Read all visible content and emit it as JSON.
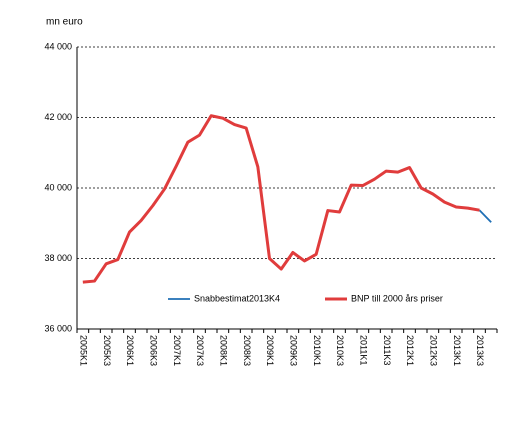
{
  "chart_data": {
    "type": "line",
    "y_label": "mn euro",
    "categories": [
      "2005K1",
      null,
      "2005K3",
      null,
      "2006K1",
      null,
      "2006K3",
      null,
      "2007K1",
      null,
      "2007K3",
      null,
      "2008K1",
      null,
      "2008K3",
      null,
      "2009K1",
      null,
      "2009K3",
      null,
      "2010K1",
      null,
      "2010K3",
      null,
      "2011K1",
      null,
      "2011K3",
      null,
      "2012K1",
      null,
      "2012K3",
      null,
      "2013K1",
      null,
      "2013K3",
      null
    ],
    "series": [
      {
        "name": "Snabbestimat2013K4",
        "color": "#1f6fb5",
        "values": [
          null,
          null,
          null,
          null,
          null,
          null,
          null,
          null,
          null,
          null,
          null,
          null,
          null,
          null,
          null,
          null,
          null,
          null,
          null,
          null,
          null,
          null,
          null,
          null,
          null,
          null,
          null,
          null,
          null,
          null,
          null,
          null,
          null,
          null,
          39370,
          39030
        ]
      },
      {
        "name": "BNP till 2000 års priser",
        "color": "#e03c3c",
        "values": [
          37330,
          37360,
          37850,
          37970,
          38750,
          39080,
          39500,
          39970,
          40620,
          41300,
          41500,
          42050,
          41980,
          41800,
          41700,
          40600,
          38000,
          37700,
          38170,
          37930,
          38120,
          39360,
          39320,
          40080,
          40070,
          40250,
          40480,
          40450,
          40580,
          40000,
          39830,
          39600,
          39460,
          39430,
          39370,
          null
        ]
      }
    ],
    "ylim": [
      36000,
      44000
    ],
    "yticks": [
      {
        "value": 36000,
        "label": "36 000"
      },
      {
        "value": 38000,
        "label": "38 000"
      },
      {
        "value": 40000,
        "label": "40 000"
      },
      {
        "value": 42000,
        "label": "42 000"
      },
      {
        "value": 44000,
        "label": "44 000"
      }
    ],
    "grid": true
  }
}
